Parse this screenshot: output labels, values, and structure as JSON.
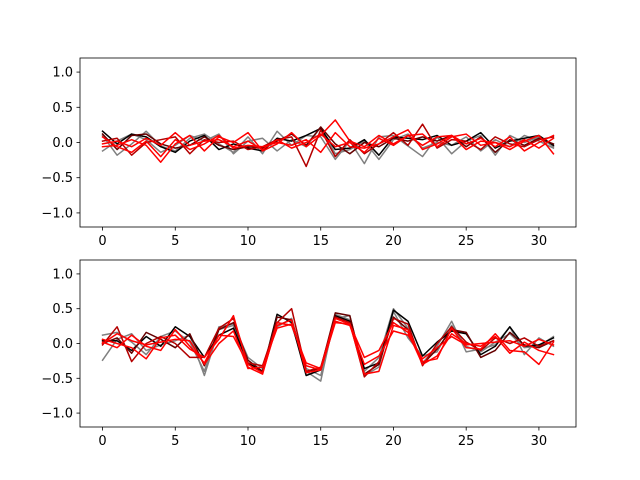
{
  "chart_data": [
    {
      "type": "line",
      "title": "",
      "xlabel": "",
      "ylabel": "",
      "xlim": [
        -1.55,
        32.55
      ],
      "ylim": [
        -1.2,
        1.2
      ],
      "xticks": [
        0,
        5,
        10,
        15,
        20,
        25,
        30
      ],
      "xtick_labels": [
        "0",
        "5",
        "10",
        "15",
        "20",
        "25",
        "30"
      ],
      "yticks": [
        -1.0,
        -0.5,
        0.0,
        0.5,
        1.0
      ],
      "ytick_labels": [
        "−1.0",
        "−0.5",
        "0.0",
        "0.5",
        "1.0"
      ],
      "grid": false,
      "x": [
        0,
        1,
        2,
        3,
        4,
        5,
        6,
        7,
        8,
        9,
        10,
        11,
        12,
        13,
        14,
        15,
        16,
        17,
        18,
        19,
        20,
        21,
        22,
        23,
        24,
        25,
        26,
        27,
        28,
        29,
        30,
        31
      ],
      "series": [
        {
          "color": "#808080",
          "values": [
            0.1,
            -0.18,
            -0.02,
            0.16,
            -0.05,
            -0.12,
            0.06,
            0.12,
            -0.02,
            -0.14,
            0.08,
            -0.16,
            0.16,
            -0.04,
            0.1,
            0.08,
            -0.24,
            0.02,
            -0.3,
            0.08,
            0.1,
            -0.05,
            -0.2,
            0.08,
            -0.16,
            0.02,
            0.1,
            -0.18,
            0.1,
            0.0,
            0.08,
            -0.06
          ]
        },
        {
          "color": "#808080",
          "values": [
            -0.12,
            0.02,
            0.12,
            0.04,
            -0.14,
            -0.04,
            0.1,
            0.02,
            0.12,
            -0.16,
            0.02,
            0.06,
            -0.12,
            0.04,
            -0.06,
            0.22,
            -0.16,
            -0.1,
            0.02,
            -0.24,
            0.04,
            0.12,
            -0.08,
            0.0,
            -0.04,
            0.08,
            -0.12,
            0.04,
            -0.06,
            0.1,
            0.02,
            -0.08
          ]
        },
        {
          "color": "#000000",
          "values": [
            0.16,
            -0.02,
            0.12,
            0.08,
            -0.06,
            -0.14,
            0.02,
            0.1,
            -0.1,
            -0.02,
            -0.08,
            -0.12,
            0.06,
            0.02,
            0.1,
            0.2,
            -0.1,
            -0.08,
            0.04,
            -0.18,
            0.08,
            0.06,
            0.04,
            0.1,
            -0.04,
            0.02,
            0.14,
            -0.08,
            0.02,
            0.06,
            0.1,
            -0.04
          ]
        },
        {
          "color": "#660000",
          "values": [
            0.12,
            -0.1,
            0.1,
            0.12,
            -0.02,
            -0.08,
            -0.04,
            0.08,
            -0.04,
            -0.1,
            -0.06,
            -0.08,
            0.02,
            0.12,
            -0.04,
            0.22,
            -0.02,
            -0.16,
            0.0,
            -0.06,
            0.06,
            0.02,
            0.08,
            0.02,
            0.1,
            -0.06,
            0.08,
            -0.14,
            0.04,
            -0.04,
            0.06,
            -0.02
          ]
        },
        {
          "color": "#b30000",
          "values": [
            0.02,
            0.06,
            -0.18,
            0.0,
            0.04,
            0.08,
            -0.16,
            0.04,
            0.0,
            0.02,
            -0.1,
            -0.06,
            0.04,
            0.08,
            -0.34,
            0.18,
            -0.2,
            0.04,
            -0.16,
            -0.02,
            0.14,
            -0.04,
            0.26,
            -0.08,
            0.04,
            0.02,
            -0.1,
            0.08,
            -0.02,
            -0.06,
            0.04,
            0.08
          ]
        },
        {
          "color": "#ff0000",
          "values": [
            -0.06,
            -0.04,
            0.04,
            -0.04,
            -0.28,
            -0.02,
            0.1,
            -0.12,
            0.08,
            0.0,
            0.14,
            -0.12,
            -0.02,
            0.14,
            -0.06,
            0.1,
            0.32,
            0.02,
            -0.06,
            0.1,
            -0.02,
            0.1,
            0.12,
            -0.06,
            0.08,
            0.12,
            -0.04,
            0.0,
            -0.1,
            0.02,
            0.1,
            -0.16
          ]
        },
        {
          "color": "#ff0000",
          "values": [
            0.08,
            -0.06,
            -0.14,
            0.02,
            -0.2,
            0.04,
            -0.1,
            -0.02,
            0.1,
            -0.08,
            -0.04,
            -0.06,
            0.0,
            -0.04,
            0.04,
            -0.14,
            0.14,
            -0.06,
            -0.08,
            -0.02,
            0.08,
            0.18,
            -0.1,
            -0.02,
            0.1,
            -0.02,
            0.06,
            -0.06,
            0.08,
            -0.12,
            0.0,
            0.1
          ]
        },
        {
          "color": "#ff0000",
          "values": [
            -0.02,
            0.02,
            -0.06,
            0.06,
            -0.04,
            0.14,
            -0.04,
            0.02,
            0.04,
            -0.06,
            0.02,
            -0.1,
            0.04,
            -0.08,
            0.0,
            0.12,
            -0.06,
            0.0,
            -0.14,
            0.06,
            -0.04,
            0.1,
            -0.04,
            0.08,
            0.1,
            -0.1,
            0.02,
            0.0,
            -0.06,
            0.04,
            -0.08,
            0.06
          ]
        }
      ]
    },
    {
      "type": "line",
      "title": "",
      "xlabel": "",
      "ylabel": "",
      "xlim": [
        -1.55,
        32.55
      ],
      "ylim": [
        -1.2,
        1.2
      ],
      "xticks": [
        0,
        5,
        10,
        15,
        20,
        25,
        30
      ],
      "xtick_labels": [
        "0",
        "5",
        "10",
        "15",
        "20",
        "25",
        "30"
      ],
      "yticks": [
        -1.0,
        -0.5,
        0.0,
        0.5,
        1.0
      ],
      "ytick_labels": [
        "−1.0",
        "−0.5",
        "0.0",
        "0.5",
        "1.0"
      ],
      "grid": false,
      "x": [
        0,
        1,
        2,
        3,
        4,
        5,
        6,
        7,
        8,
        9,
        10,
        11,
        12,
        13,
        14,
        15,
        16,
        17,
        18,
        19,
        20,
        21,
        22,
        23,
        24,
        25,
        26,
        27,
        28,
        29,
        30,
        31
      ],
      "series": [
        {
          "color": "#808080",
          "values": [
            0.12,
            0.16,
            0.02,
            -0.16,
            0.1,
            0.18,
            0.02,
            -0.4,
            0.24,
            0.28,
            -0.2,
            -0.36,
            0.24,
            0.36,
            -0.4,
            -0.54,
            0.42,
            0.34,
            -0.4,
            -0.2,
            0.5,
            0.22,
            -0.28,
            -0.04,
            0.32,
            -0.12,
            -0.08,
            -0.02,
            0.24,
            -0.16,
            0.08,
            -0.04
          ]
        },
        {
          "color": "#808080",
          "values": [
            -0.24,
            0.06,
            0.14,
            -0.1,
            -0.02,
            0.04,
            0.12,
            -0.46,
            0.2,
            0.26,
            -0.3,
            -0.4,
            0.3,
            0.26,
            -0.36,
            -0.46,
            0.36,
            0.4,
            -0.46,
            -0.34,
            0.46,
            0.08,
            -0.18,
            -0.12,
            0.26,
            -0.04,
            -0.12,
            0.02,
            0.14,
            -0.06,
            -0.04,
            0.1
          ]
        },
        {
          "color": "#000000",
          "values": [
            0.04,
            0.04,
            -0.1,
            0.1,
            -0.04,
            0.24,
            0.1,
            -0.2,
            0.12,
            0.22,
            -0.28,
            -0.4,
            0.42,
            0.3,
            -0.46,
            -0.38,
            0.4,
            0.32,
            -0.36,
            -0.28,
            0.48,
            0.32,
            -0.18,
            0.02,
            0.18,
            0.14,
            -0.16,
            -0.04,
            0.24,
            -0.04,
            -0.02,
            0.08
          ]
        },
        {
          "color": "#660000",
          "values": [
            0.0,
            0.08,
            -0.14,
            0.16,
            0.06,
            -0.06,
            0.14,
            -0.32,
            0.2,
            0.3,
            -0.24,
            -0.4,
            0.38,
            0.34,
            -0.4,
            -0.36,
            0.44,
            0.4,
            -0.44,
            -0.3,
            0.38,
            0.2,
            -0.3,
            -0.08,
            0.2,
            0.16,
            -0.2,
            -0.1,
            0.16,
            -0.02,
            -0.06,
            0.04
          ]
        },
        {
          "color": "#b30000",
          "values": [
            -0.02,
            0.24,
            -0.26,
            0.0,
            0.1,
            0.0,
            -0.2,
            -0.2,
            0.22,
            0.36,
            -0.28,
            -0.32,
            0.3,
            0.5,
            -0.4,
            -0.34,
            0.38,
            0.3,
            -0.48,
            -0.26,
            0.36,
            0.28,
            -0.32,
            0.0,
            0.24,
            0.02,
            -0.1,
            0.08,
            0.0,
            0.08,
            -0.04,
            0.04
          ]
        },
        {
          "color": "#ff0000",
          "values": [
            0.06,
            0.0,
            -0.06,
            -0.22,
            0.08,
            0.12,
            -0.08,
            -0.2,
            0.06,
            0.4,
            -0.34,
            -0.44,
            0.3,
            0.26,
            -0.28,
            -0.36,
            0.36,
            0.28,
            -0.2,
            -0.1,
            0.3,
            0.16,
            -0.3,
            -0.18,
            0.14,
            0.0,
            -0.04,
            0.1,
            -0.14,
            0.02,
            -0.1,
            -0.16
          ]
        },
        {
          "color": "#ff0000",
          "values": [
            0.02,
            -0.06,
            0.12,
            -0.04,
            -0.1,
            0.2,
            -0.04,
            -0.28,
            0.12,
            0.1,
            -0.3,
            -0.42,
            0.26,
            0.34,
            -0.42,
            -0.38,
            0.3,
            0.28,
            -0.44,
            -0.4,
            0.26,
            0.2,
            -0.26,
            -0.22,
            0.22,
            -0.06,
            -0.08,
            0.14,
            -0.1,
            -0.12,
            -0.3,
            0.02
          ]
        },
        {
          "color": "#ff0000",
          "values": [
            0.0,
            0.14,
            0.04,
            -0.02,
            0.02,
            0.06,
            0.04,
            -0.3,
            0.0,
            0.18,
            -0.36,
            -0.34,
            0.22,
            0.28,
            -0.32,
            -0.38,
            0.32,
            0.26,
            -0.3,
            -0.18,
            0.18,
            0.12,
            -0.22,
            -0.06,
            0.1,
            -0.02,
            0.0,
            0.02,
            0.04,
            -0.04,
            0.06,
            -0.02
          ]
        }
      ]
    }
  ]
}
